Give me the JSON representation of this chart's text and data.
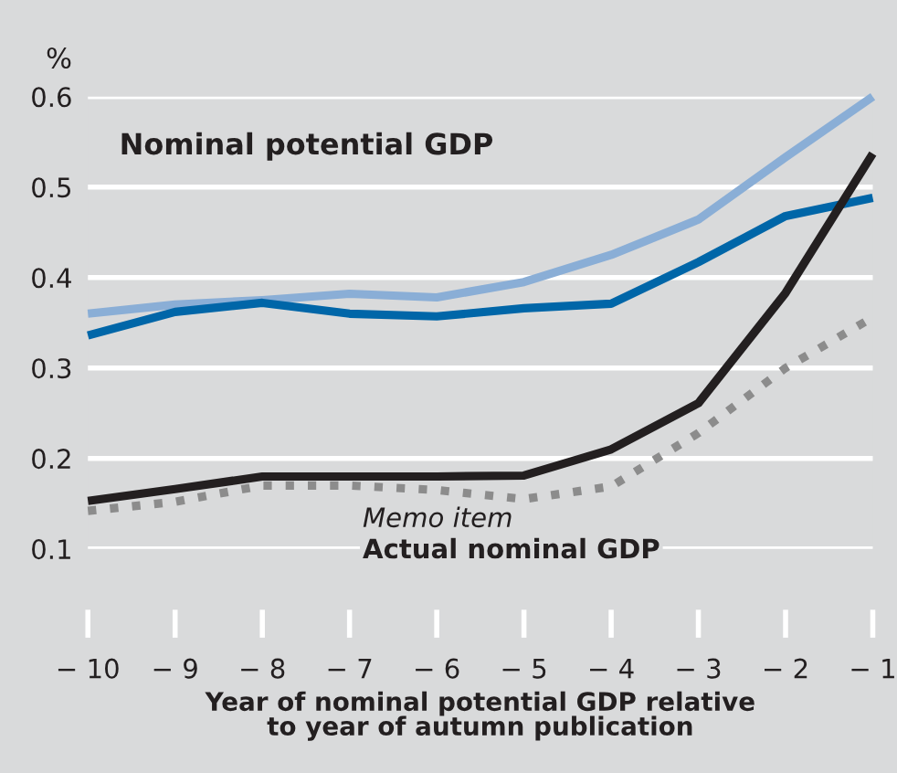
{
  "chart_data": {
    "type": "line",
    "ylabel": "%",
    "xlabel": "Year of nominal potential GDP relative\nto year of autumn publication",
    "x": [
      -10,
      -9,
      -8,
      -7,
      -6,
      -5,
      -4,
      -3,
      -2,
      -1
    ],
    "series": [
      {
        "color": "#8aaed6",
        "values": [
          0.36,
          0.37,
          0.375,
          0.382,
          0.378,
          0.395,
          0.425,
          0.464,
          0.533,
          0.6
        ]
      },
      {
        "color": "#0066a8",
        "values": [
          0.336,
          0.362,
          0.372,
          0.36,
          0.357,
          0.366,
          0.371,
          0.417,
          0.468,
          0.488
        ]
      },
      {
        "color": "#231f20",
        "values": [
          0.153,
          0.166,
          0.18,
          0.18,
          0.18,
          0.181,
          0.21,
          0.261,
          0.383,
          0.537
        ]
      },
      {
        "color": "#8c8c8c",
        "line_style": "dotted",
        "values": [
          0.142,
          0.152,
          0.17,
          0.17,
          0.165,
          0.155,
          0.169,
          0.228,
          0.3,
          0.356
        ]
      }
    ],
    "annotations": [
      "Nominal potential GDP",
      "Memo item",
      "Actual nominal GDP"
    ],
    "xlim": [
      -10,
      -1
    ],
    "ylim": [
      0.1,
      0.6
    ],
    "xticks": [
      {
        "value": -10,
        "label": "− 10"
      },
      {
        "value": -9,
        "label": "− 9"
      },
      {
        "value": -8,
        "label": "− 8"
      },
      {
        "value": -7,
        "label": "− 7"
      },
      {
        "value": -6,
        "label": "− 6"
      },
      {
        "value": -5,
        "label": "− 5"
      },
      {
        "value": -4,
        "label": "− 4"
      },
      {
        "value": -3,
        "label": "− 3"
      },
      {
        "value": -2,
        "label": "− 2"
      },
      {
        "value": -1,
        "label": "− 1"
      }
    ],
    "yticks": [
      0.1,
      0.2,
      0.3,
      0.4,
      0.5,
      0.6
    ],
    "grid": "y",
    "marker": "none"
  }
}
